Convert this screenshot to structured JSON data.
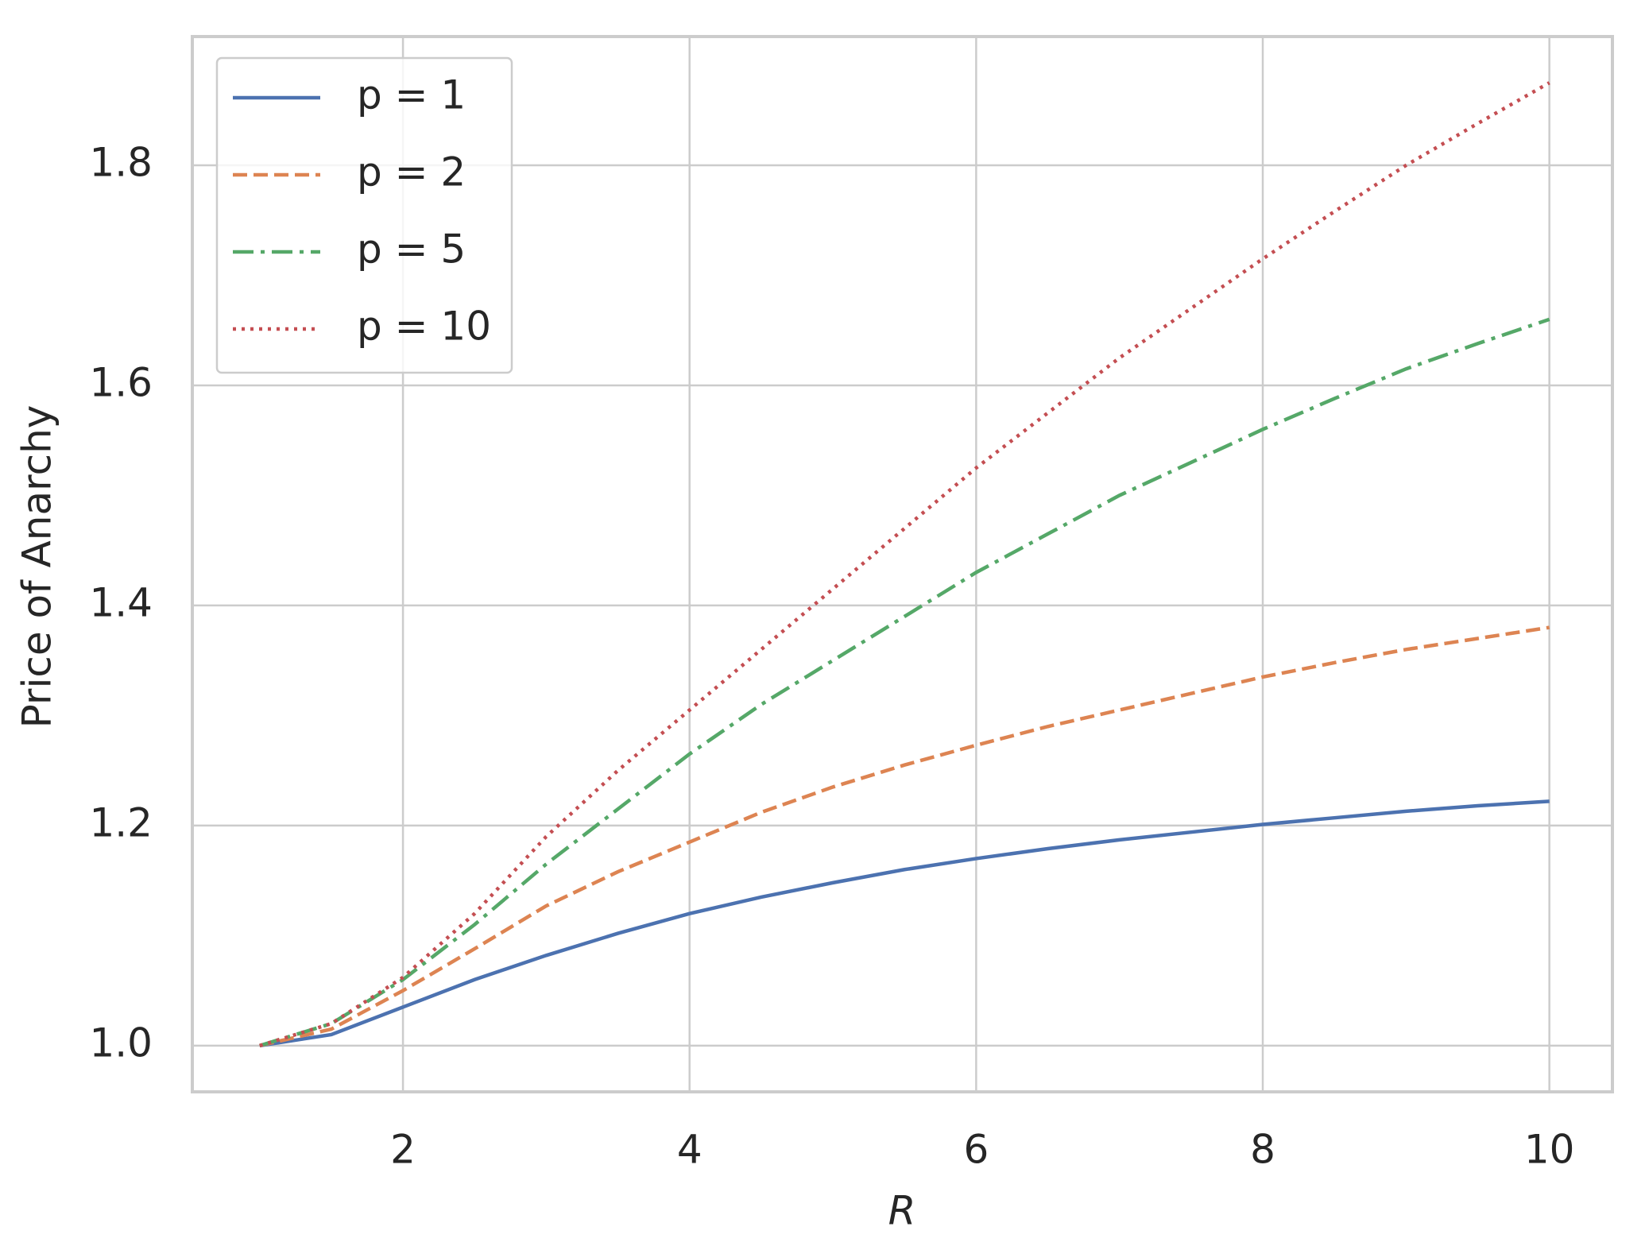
{
  "chart_data": {
    "type": "line",
    "xlabel": "R",
    "ylabel": "Price of Anarchy",
    "x": [
      1,
      1.5,
      2,
      2.5,
      3,
      3.5,
      4,
      4.5,
      5,
      5.5,
      6,
      6.5,
      7,
      7.5,
      8,
      8.5,
      9,
      9.5,
      10
    ],
    "series": [
      {
        "name": "p = 1",
        "color": "#4c72b0",
        "dash": "solid",
        "values": [
          1,
          1.01,
          1.035,
          1.06,
          1.082,
          1.102,
          1.12,
          1.135,
          1.148,
          1.16,
          1.17,
          1.179,
          1.187,
          1.194,
          1.201,
          1.207,
          1.213,
          1.218,
          1.222
        ]
      },
      {
        "name": "p = 2",
        "color": "#dd8452",
        "dash": "dashed",
        "values": [
          1,
          1.015,
          1.05,
          1.088,
          1.127,
          1.158,
          1.185,
          1.212,
          1.235,
          1.255,
          1.273,
          1.29,
          1.305,
          1.32,
          1.335,
          1.348,
          1.36,
          1.37,
          1.38
        ]
      },
      {
        "name": "p = 5",
        "color": "#55a868",
        "dash": "dashdot",
        "values": [
          1,
          1.02,
          1.06,
          1.11,
          1.165,
          1.215,
          1.265,
          1.31,
          1.35,
          1.39,
          1.43,
          1.465,
          1.5,
          1.53,
          1.56,
          1.588,
          1.615,
          1.638,
          1.66
        ]
      },
      {
        "name": "p = 10",
        "color": "#c44e52",
        "dash": "dotted",
        "values": [
          1,
          1.02,
          1.062,
          1.12,
          1.19,
          1.25,
          1.305,
          1.36,
          1.415,
          1.47,
          1.525,
          1.575,
          1.625,
          1.67,
          1.715,
          1.758,
          1.8,
          1.838,
          1.875
        ]
      }
    ],
    "xlim": [
      0.53,
      10.44
    ],
    "xticks": [
      2,
      4,
      6,
      8,
      10
    ],
    "ylim": [
      0.958,
      1.917
    ],
    "yticks": [
      {
        "value": 1.0,
        "label": "1.0"
      },
      1.2,
      1.4,
      1.6,
      1.8
    ],
    "grid": true,
    "legend": "upper left"
  }
}
